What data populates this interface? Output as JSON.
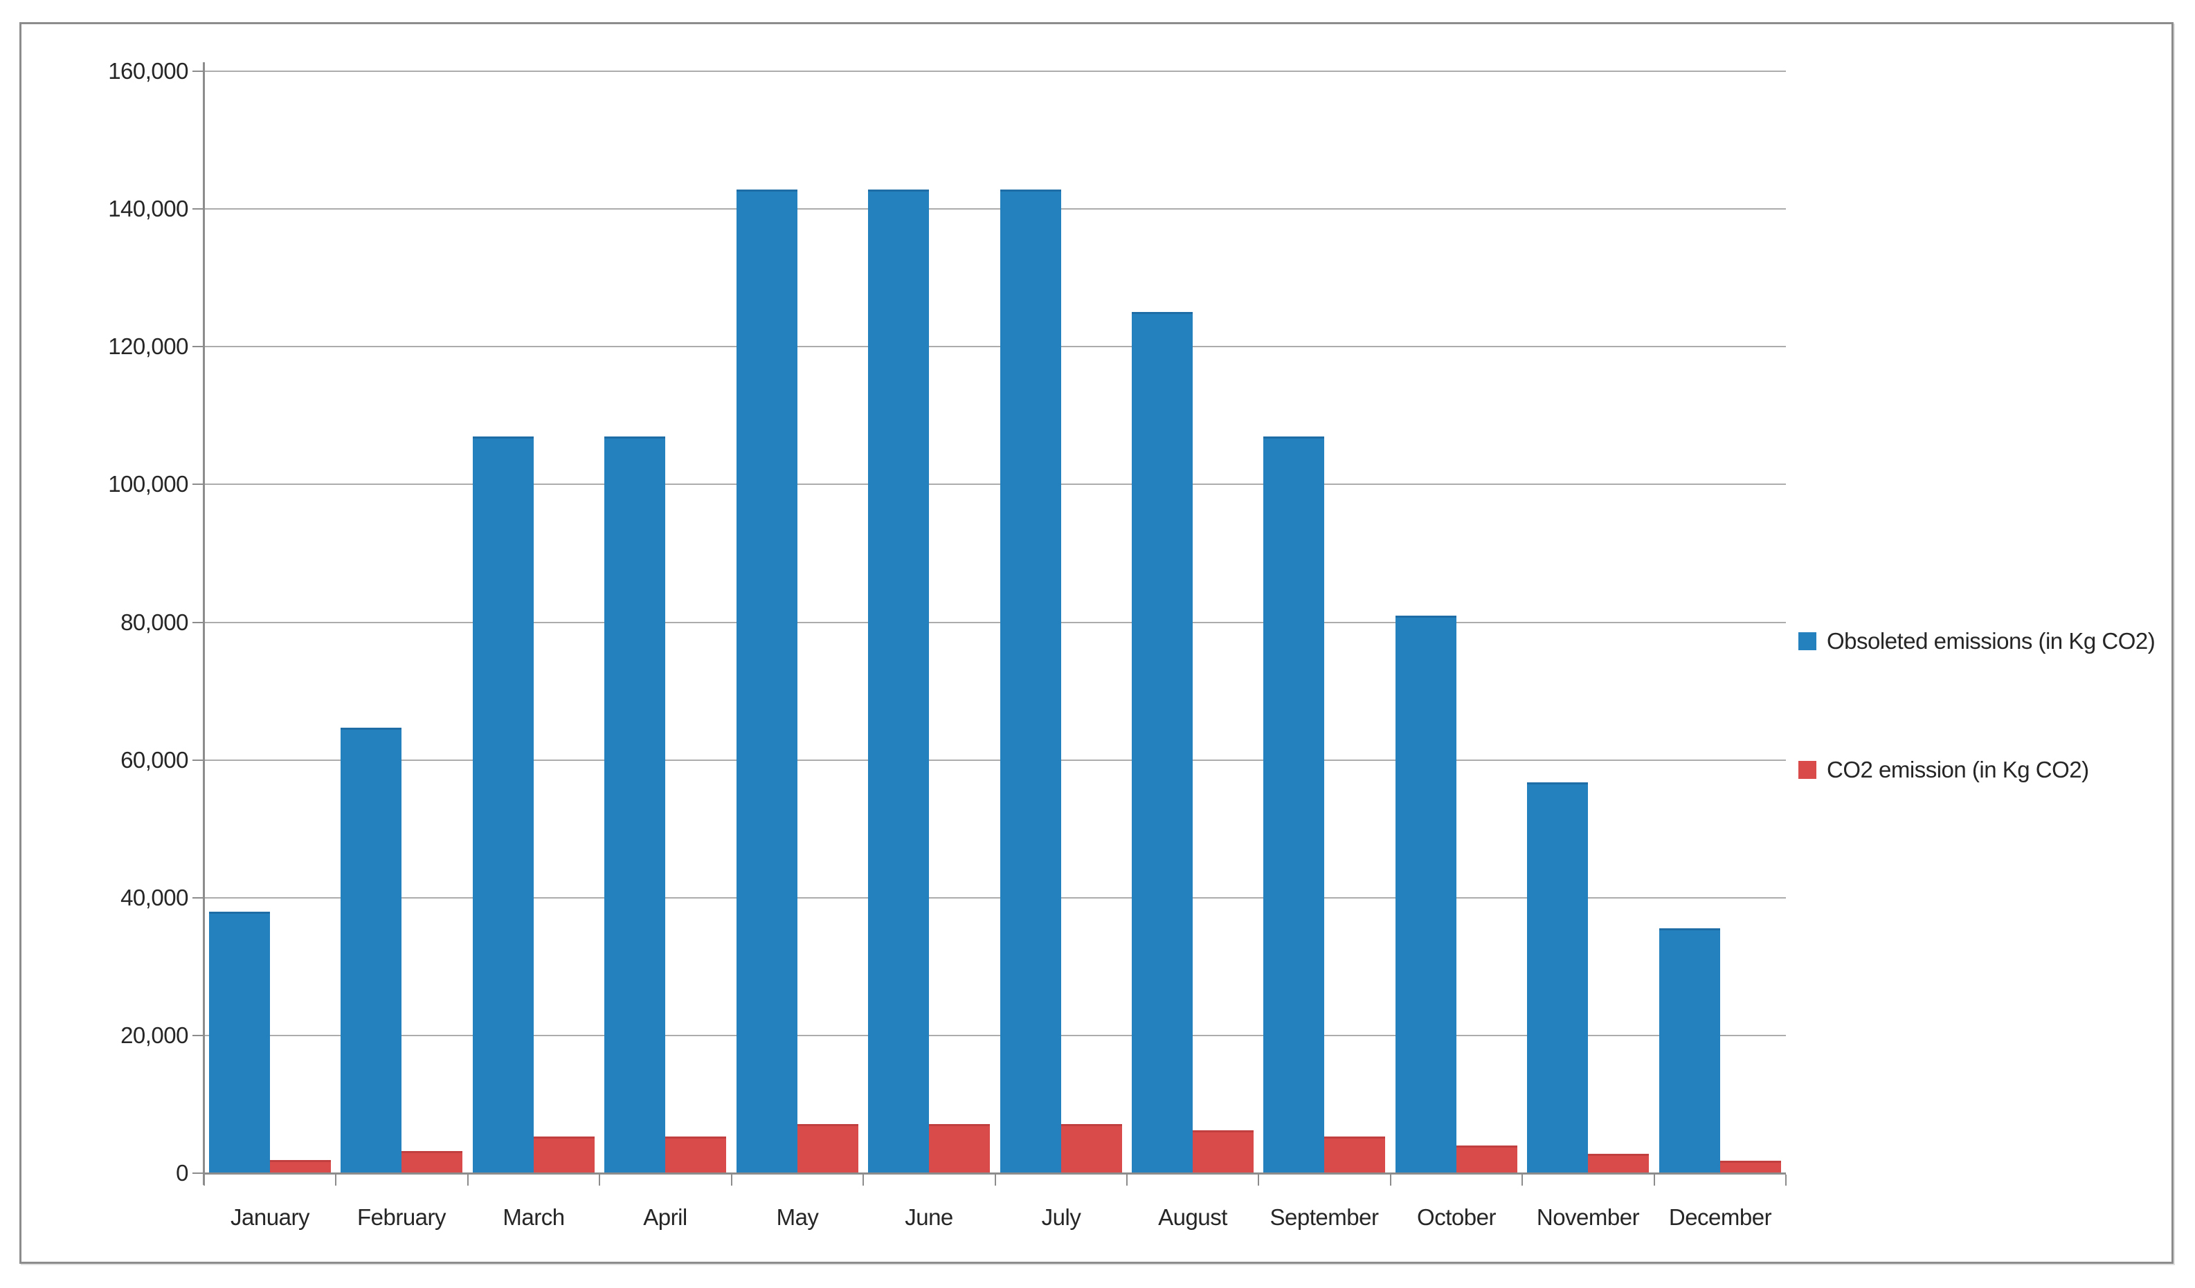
{
  "chart_data": {
    "type": "bar",
    "title": "",
    "categories": [
      "January",
      "February",
      "March",
      "April",
      "May",
      "June",
      "July",
      "August",
      "September",
      "October",
      "November",
      "December"
    ],
    "series": [
      {
        "name": "Obsoleted emissions (in Kg CO2)",
        "color": "#2581BE",
        "edge_color": "#1E6DA6",
        "values": [
          38000,
          64700,
          107000,
          107000,
          142800,
          142800,
          142800,
          125000,
          107000,
          81000,
          56700,
          35600
        ]
      },
      {
        "name": "CO2 emission (in Kg CO2)",
        "color": "#D94B4B",
        "edge_color": "#C13F3F",
        "values": [
          1900,
          3200,
          5300,
          5300,
          7100,
          7100,
          7100,
          6200,
          5300,
          4000,
          2800,
          1800
        ]
      }
    ],
    "ylim": [
      0,
      160000
    ],
    "ytick_step": 20000,
    "yticks": [
      {
        "value": 0,
        "label": "0"
      },
      {
        "value": 20000,
        "label": "20,000"
      },
      {
        "value": 40000,
        "label": "40,000"
      },
      {
        "value": 60000,
        "label": "60,000"
      },
      {
        "value": 80000,
        "label": "80,000"
      },
      {
        "value": 100000,
        "label": "100,000"
      },
      {
        "value": 120000,
        "label": "120,000"
      },
      {
        "value": 140000,
        "label": "140,000"
      },
      {
        "value": 160000,
        "label": "160,000"
      }
    ],
    "grid": true,
    "legend_position": "right-middle"
  },
  "colors": {
    "background": "#FFFFFF",
    "border": "#8C8C8C",
    "gridline": "#ACACAC",
    "axis": "#8C8C8C",
    "text": "#262626"
  }
}
